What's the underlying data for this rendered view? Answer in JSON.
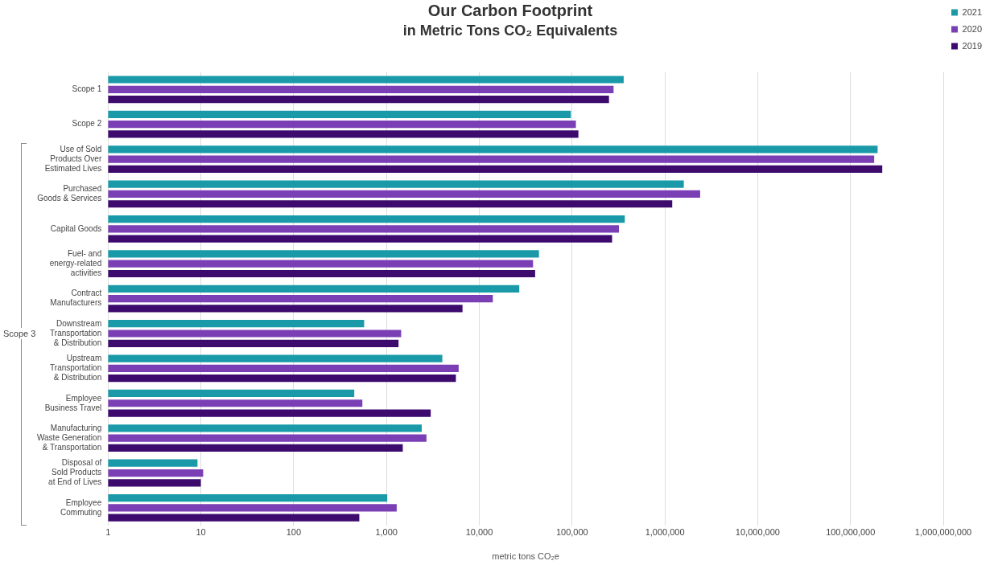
{
  "chart_data": {
    "type": "bar",
    "orientation": "horizontal",
    "title": "Our Carbon Footprint",
    "subtitle": "in Metric Tons CO₂ Equivalents",
    "xlabel": "metric tons CO₂e",
    "categories": [
      "Scope 1",
      "Scope 2",
      "Use of Sold\nProducts Over\nEstimated Lives",
      "Purchased\nGoods & Services",
      "Capital Goods",
      "Fuel- and\nenergy-related\nactivities",
      "Contract\nManufacturers",
      "Downstream\nTransportation\n& Distribution",
      "Upstream\nTransportation\n& Distribution",
      "Employee\nBusiness Travel",
      "Manufacturing\nWaste Generation\n& Transportation",
      "Disposal of\nSold Products\nat End of Lives",
      "Employee\nCommuting"
    ],
    "series": [
      {
        "name": "2021",
        "color": "#1a9aa8",
        "values": [
          360000,
          97000,
          196000000,
          1600000,
          370000,
          44000,
          27000,
          575,
          4000,
          450,
          2400,
          9.2,
          1020
        ]
      },
      {
        "name": "2020",
        "color": "#7b3fb5",
        "values": [
          280000,
          110000,
          180000000,
          2400000,
          320000,
          38000,
          14000,
          1440,
          6000,
          550,
          2700,
          10.6,
          1290
        ]
      },
      {
        "name": "2019",
        "color": "#3d0a6e",
        "values": [
          250000,
          117000,
          220000000,
          1200000,
          270000,
          40000,
          6600,
          1350,
          5600,
          3000,
          1500,
          10,
          510
        ]
      }
    ],
    "log": "x",
    "xlim": [
      1,
      1000000000
    ],
    "xticks": [
      1,
      10,
      100,
      {
        "value": 1000,
        "label": "1,000"
      },
      {
        "value": 10000,
        "label": "10,000"
      },
      {
        "value": 100000,
        "label": "100,000"
      },
      {
        "value": 1000000,
        "label": "1,000,000"
      },
      {
        "value": 10000000,
        "label": "10,000,000"
      },
      {
        "value": 100000000,
        "label": "100,000,000"
      },
      {
        "value": 1000000000,
        "label": "1,000,000,000"
      }
    ],
    "grid": "x",
    "legend": "top right",
    "annotations": [
      "Scope 3"
    ]
  }
}
